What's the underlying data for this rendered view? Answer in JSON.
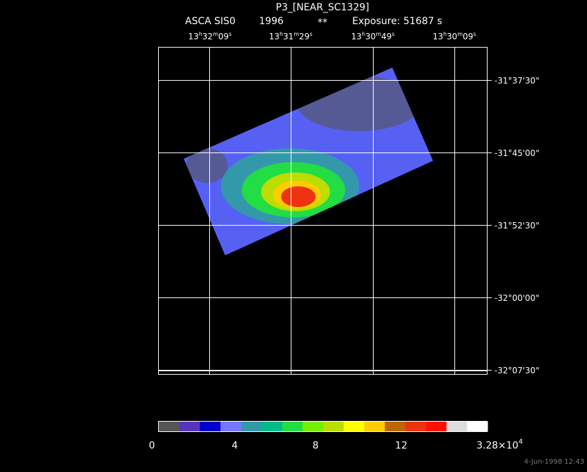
{
  "header": {
    "title": "P3_[NEAR_SC1329]",
    "instrument": "ASCA SIS0",
    "year": "1996",
    "flag": "**",
    "exposure": "Exposure: 51687 s"
  },
  "ra_labels": [
    [
      "13",
      "h",
      "32",
      "m",
      "09",
      "s"
    ],
    [
      "13",
      "h",
      "31",
      "m",
      "29",
      "s"
    ],
    [
      "13",
      "h",
      "30",
      "m",
      "49",
      "s"
    ],
    [
      "13",
      "h",
      "30",
      "m",
      "09",
      "s"
    ]
  ],
  "dec_labels": [
    "-31°37'30\"",
    "-31°45'00\"",
    "-31°52'30\"",
    "-32°00'00\"",
    "-32°07'30\""
  ],
  "colorbar": {
    "colors": [
      "#555555",
      "#5533bb",
      "#0000cc",
      "#7777ff",
      "#3399aa",
      "#00bb88",
      "#22dd44",
      "#77ee00",
      "#bbdd00",
      "#ffff00",
      "#ffcc00",
      "#bb6600",
      "#ee3311",
      "#ff1100",
      "#dddddd",
      "#ffffff"
    ],
    "labels": [
      "0",
      "4",
      "8",
      "12"
    ],
    "max_label": {
      "mantissa": "3.28×10",
      "exponent": "4"
    }
  },
  "timestamp": "4-Jun-1998 12:43"
}
